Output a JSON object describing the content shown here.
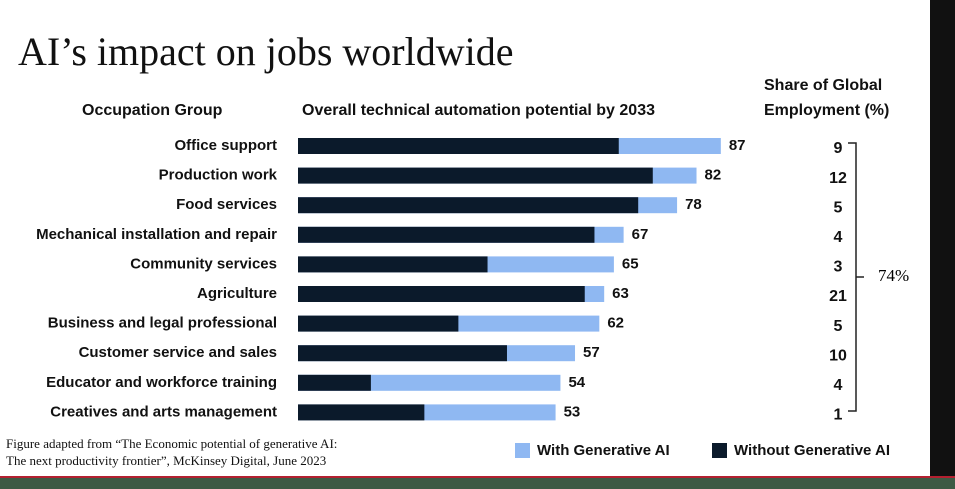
{
  "chart_data": {
    "type": "bar",
    "orientation": "horizontal",
    "title": "AI’s impact on jobs worldwide",
    "category_header": "Occupation Group",
    "value_header": "Overall technical automation potential by 2033",
    "categories": [
      "Office support",
      "Production work",
      "Food services",
      "Mechanical installation and repair",
      "Community services",
      "Agriculture",
      "Business and legal professional",
      "Customer service and sales",
      "Educator and workforce training",
      "Creatives and arts management"
    ],
    "series": [
      {
        "name": "With Generative AI",
        "color": "#8fb8f2",
        "values": [
          87,
          82,
          78,
          67,
          65,
          63,
          62,
          57,
          54,
          53
        ],
        "show_labels": true
      },
      {
        "name": "Without Generative AI",
        "color": "#0b1a2b",
        "values": [
          66,
          73,
          70,
          61,
          39,
          59,
          33,
          43,
          15,
          26
        ],
        "show_labels": false
      }
    ],
    "xlim": [
      0,
      100
    ],
    "share_header": [
      "Share of Global",
      "Employment (%)"
    ],
    "share_values": [
      9,
      12,
      5,
      4,
      3,
      21,
      5,
      10,
      4,
      1
    ],
    "share_bracket_label": "74%",
    "footnote": [
      "Figure adapted from “The Economic potential of generative AI:",
      "The next productivity frontier”, McKinsey Digital, June 2023"
    ]
  }
}
